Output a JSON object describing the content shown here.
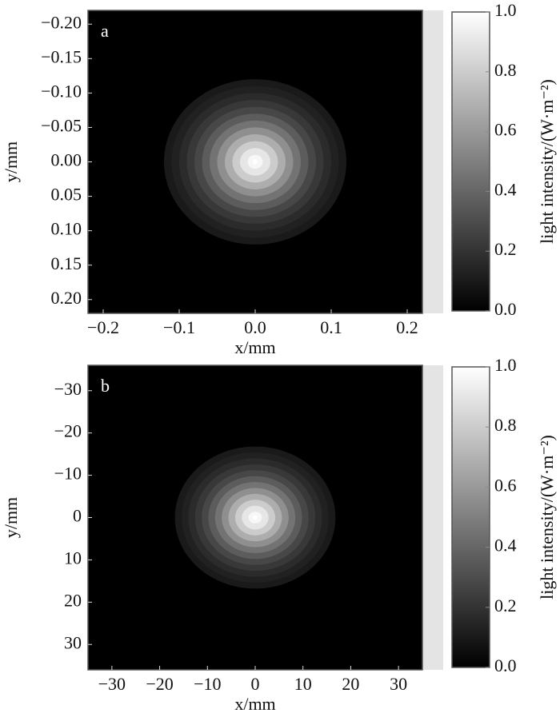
{
  "chart_data": [
    {
      "type": "heatmap",
      "panel_label": "a",
      "xlabel": "x/mm",
      "ylabel": "y/mm",
      "colorbar_label": "light intensity/(W·m⁻²)",
      "xlim": [
        -0.22,
        0.22
      ],
      "ylim": [
        -0.22,
        0.22
      ],
      "y_inverted": true,
      "xticks": [
        {
          "value": -0.2,
          "label": "−0.2"
        },
        {
          "value": -0.1,
          "label": "−0.1"
        },
        {
          "value": 0,
          "label": "0.0"
        },
        0.1,
        0.2
      ],
      "yticks": [
        {
          "value": -0.2,
          "label": "−0.20"
        },
        {
          "value": -0.15,
          "label": "−0.15"
        },
        {
          "value": -0.1,
          "label": "−0.10"
        },
        {
          "value": -0.05,
          "label": "−0.05"
        },
        {
          "value": 0,
          "label": "0.00"
        },
        {
          "value": 0.05,
          "label": "0.05"
        },
        {
          "value": 0.1,
          "label": "0.10"
        },
        {
          "value": 0.15,
          "label": "0.15"
        },
        {
          "value": 0.2,
          "label": "0.20"
        }
      ],
      "center": [
        0,
        0
      ],
      "r": [
        0,
        0.01,
        0.02,
        0.03,
        0.04,
        0.05,
        0.06,
        0.07,
        0.08,
        0.09,
        0.1,
        0.11,
        0.12
      ],
      "values": [
        1.0,
        0.97,
        0.9,
        0.8,
        0.68,
        0.56,
        0.45,
        0.36,
        0.28,
        0.22,
        0.17,
        0.13,
        0.1
      ],
      "clim": [
        0,
        1
      ],
      "cticks": [
        {
          "value": 0,
          "label": "0.0"
        },
        {
          "value": 0.2,
          "label": "0.2"
        },
        {
          "value": 0.4,
          "label": "0.4"
        },
        {
          "value": 0.6,
          "label": "0.6"
        },
        {
          "value": 0.8,
          "label": "0.8"
        },
        {
          "value": 1,
          "label": "1.0"
        }
      ],
      "colormap": [
        "#000000",
        "#ffffff"
      ]
    },
    {
      "type": "heatmap",
      "panel_label": "b",
      "xlabel": "x/mm",
      "ylabel": "y/mm",
      "colorbar_label": "light intensity/(W·m⁻²)",
      "xlim": [
        -35,
        35
      ],
      "ylim": [
        -36,
        36
      ],
      "y_inverted": true,
      "xticks": [
        {
          "value": -30,
          "label": "−30"
        },
        {
          "value": -20,
          "label": "−20"
        },
        {
          "value": -10,
          "label": "−10"
        },
        0,
        10,
        20,
        30
      ],
      "yticks": [
        {
          "value": -30,
          "label": "−30"
        },
        {
          "value": -20,
          "label": "−20"
        },
        {
          "value": -10,
          "label": "−10"
        },
        0,
        10,
        20,
        30
      ],
      "center": [
        0,
        0
      ],
      "r": [
        0,
        1.4,
        2.8,
        4.2,
        5.6,
        7,
        8.4,
        9.8,
        11.2,
        12.6,
        14,
        15.4,
        16.8
      ],
      "values": [
        1.0,
        0.97,
        0.9,
        0.8,
        0.68,
        0.56,
        0.45,
        0.36,
        0.28,
        0.22,
        0.17,
        0.13,
        0.1
      ],
      "clim": [
        0,
        1
      ],
      "cticks": [
        {
          "value": 0,
          "label": "0.0"
        },
        {
          "value": 0.2,
          "label": "0.2"
        },
        {
          "value": 0.4,
          "label": "0.4"
        },
        {
          "value": 0.6,
          "label": "0.6"
        },
        {
          "value": 0.8,
          "label": "0.8"
        },
        {
          "value": 1,
          "label": "1.0"
        }
      ],
      "colormap": [
        "#000000",
        "#ffffff"
      ]
    }
  ]
}
